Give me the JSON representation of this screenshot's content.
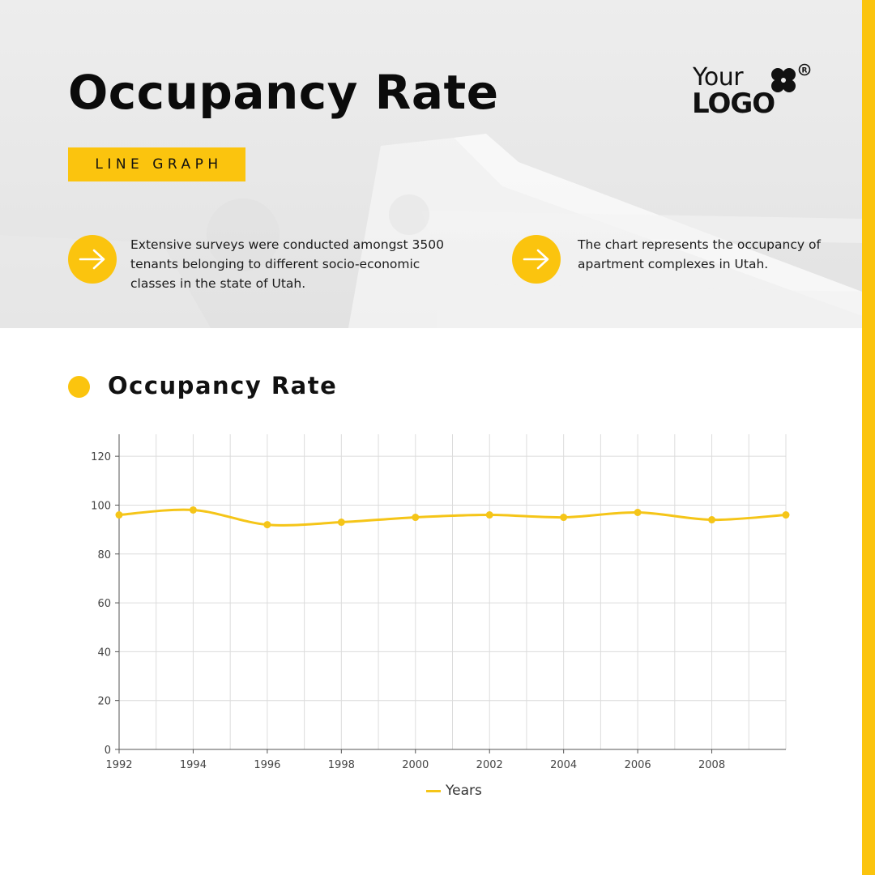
{
  "header": {
    "title": "Occupancy Rate",
    "badge": "LINE GRAPH"
  },
  "logo": {
    "line1": "Your",
    "line2": "LOGO"
  },
  "info": [
    {
      "text": "Extensive surveys were conducted amongst 3500 tenants belonging to different socio-economic classes in the state of Utah."
    },
    {
      "text": "The chart represents the occupancy of apartment complexes in Utah."
    }
  ],
  "colors": {
    "accent": "#fbc40e",
    "line": "#f5c518"
  },
  "icons": {
    "info_arrow": "arrow-right-icon",
    "section_marker": "dot-icon",
    "logo_mark": "clover-icon",
    "registered": "registered-icon"
  },
  "chart_data": {
    "type": "line",
    "title": "Occupancy Rate",
    "x": [
      1992,
      1994,
      1996,
      1998,
      2000,
      2002,
      2004,
      2006,
      2008,
      2010
    ],
    "series": [
      {
        "name": "Years",
        "values": [
          96,
          98,
          92,
          93,
          95,
          96,
          95,
          97,
          94,
          96
        ]
      }
    ],
    "x_ticks": [
      "1992",
      "1994",
      "1996",
      "1998",
      "2000",
      "2002",
      "2004",
      "2006",
      "2008"
    ],
    "y_ticks": [
      "0",
      "20",
      "40",
      "60",
      "80",
      "100",
      "120"
    ],
    "xlim": [
      1992,
      2010
    ],
    "ylim": [
      0,
      129
    ],
    "grid": true,
    "legend": "bottom",
    "xlabel": "",
    "ylabel": ""
  }
}
